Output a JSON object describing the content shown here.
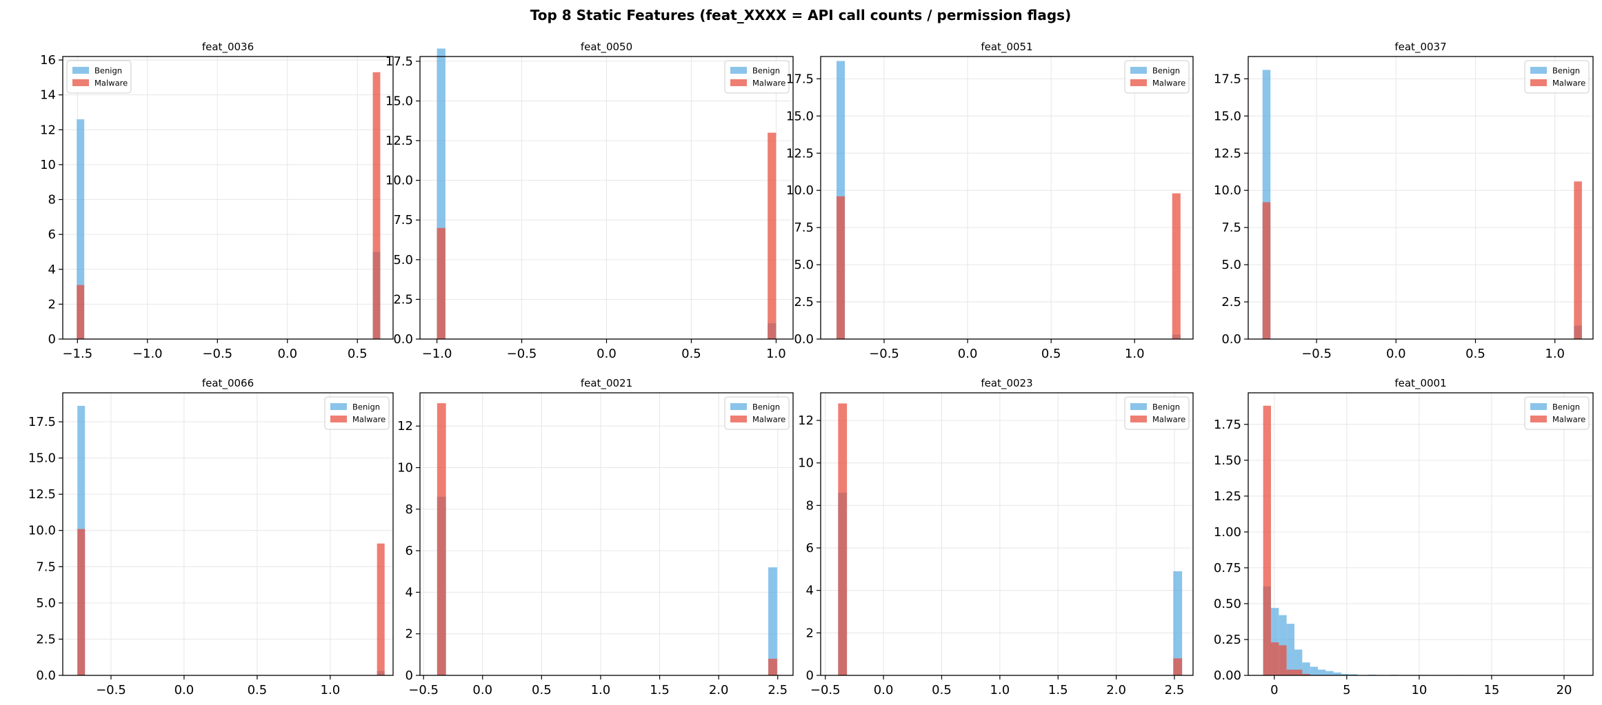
{
  "chart_data": {
    "suptitle": "Top 8 Static Features (feat_XXXX = API call counts / permission flags)",
    "legend": [
      "Benign",
      "Malware"
    ],
    "colors": {
      "benign": "#5dade2",
      "malware": "#e74c3c",
      "overlap": "#a35b7e"
    },
    "panels": [
      {
        "type": "histogram",
        "title": "feat_0036",
        "legend_loc": "upper left",
        "xlim": [
          -1.605,
          0.755
        ],
        "ylim": [
          0,
          16.2
        ],
        "xticks": [
          -1.5,
          -1.0,
          -0.5,
          0.0,
          0.5
        ],
        "xticklabels": [
          "−1.5",
          "−1.0",
          "−0.5",
          "0.0",
          "0.5"
        ],
        "yticks": [
          0,
          2,
          4,
          6,
          8,
          10,
          12,
          14,
          16
        ],
        "yticklabels": [
          "0",
          "2",
          "4",
          "6",
          "8",
          "10",
          "12",
          "14",
          "16"
        ],
        "bin_width": 0.0535,
        "benign": [
          [
            -1.505,
            12.6
          ],
          [
            0.61,
            5.0
          ]
        ],
        "malware": [
          [
            -1.505,
            3.1
          ],
          [
            0.61,
            15.3
          ]
        ]
      },
      {
        "type": "histogram",
        "title": "feat_0050",
        "legend_loc": "upper right",
        "xlim": [
          -1.1,
          1.1
        ],
        "ylim": [
          0,
          17.8
        ],
        "xticks": [
          -1.0,
          -0.5,
          0.0,
          0.5,
          1.0
        ],
        "xticklabels": [
          "−1.0",
          "−0.5",
          "0.0",
          "0.5",
          "1.0"
        ],
        "yticks": [
          0,
          2.5,
          5,
          7.5,
          10,
          12.5,
          15,
          17.5
        ],
        "yticklabels": [
          "0.0",
          "2.5",
          "5.0",
          "7.5",
          "10.0",
          "12.5",
          "15.0",
          "17.5"
        ],
        "bin_width": 0.05,
        "benign": [
          [
            -1.0,
            18.3
          ],
          [
            0.95,
            1.0
          ]
        ],
        "malware": [
          [
            -1.0,
            7.0
          ],
          [
            0.95,
            13.0
          ]
        ]
      },
      {
        "type": "histogram",
        "title": "feat_0051",
        "legend_loc": "upper right",
        "xlim": [
          -0.88,
          1.35
        ],
        "ylim": [
          0,
          19.0
        ],
        "xticks": [
          -0.5,
          0.0,
          0.5,
          1.0
        ],
        "xticklabels": [
          "−0.5",
          "0.0",
          "0.5",
          "1.0"
        ],
        "yticks": [
          0,
          2.5,
          5,
          7.5,
          10,
          12.5,
          15,
          17.5
        ],
        "yticklabels": [
          "0.0",
          "2.5",
          "5.0",
          "7.5",
          "10.0",
          "12.5",
          "15.0",
          "17.5"
        ],
        "bin_width": 0.05,
        "benign": [
          [
            -0.785,
            18.7
          ],
          [
            1.225,
            0.3
          ]
        ],
        "malware": [
          [
            -0.785,
            9.6
          ],
          [
            1.225,
            9.8
          ]
        ]
      },
      {
        "type": "histogram",
        "title": "feat_0037",
        "legend_loc": "upper right",
        "xlim": [
          -0.93,
          1.24
        ],
        "ylim": [
          0,
          19.0
        ],
        "xticks": [
          -0.5,
          0.0,
          0.5,
          1.0
        ],
        "xticklabels": [
          "−0.5",
          "0.0",
          "0.5",
          "1.0"
        ],
        "yticks": [
          0,
          2.5,
          5,
          7.5,
          10,
          12.5,
          15,
          17.5
        ],
        "yticklabels": [
          "0.0",
          "2.5",
          "5.0",
          "7.5",
          "10.0",
          "12.5",
          "15.0",
          "17.5"
        ],
        "bin_width": 0.05,
        "benign": [
          [
            -0.84,
            18.1
          ],
          [
            1.12,
            0.9
          ]
        ],
        "malware": [
          [
            -0.84,
            9.2
          ],
          [
            1.12,
            10.6
          ]
        ]
      },
      {
        "type": "histogram",
        "title": "feat_0066",
        "legend_loc": "upper right",
        "xlim": [
          -0.83,
          1.43
        ],
        "ylim": [
          0,
          19.5
        ],
        "xticks": [
          -0.5,
          0.0,
          0.5,
          1.0
        ],
        "xticklabels": [
          "−0.5",
          "0.0",
          "0.5",
          "1.0"
        ],
        "yticks": [
          0,
          2.5,
          5,
          7.5,
          10,
          12.5,
          15,
          17.5
        ],
        "yticklabels": [
          "0.0",
          "2.5",
          "5.0",
          "7.5",
          "10.0",
          "12.5",
          "15.0",
          "17.5"
        ],
        "bin_width": 0.052,
        "benign": [
          [
            -0.73,
            18.6
          ],
          [
            1.32,
            0.3
          ]
        ],
        "malware": [
          [
            -0.73,
            10.1
          ],
          [
            1.32,
            9.1
          ]
        ]
      },
      {
        "type": "histogram",
        "title": "feat_0021",
        "legend_loc": "upper right",
        "xlim": [
          -0.53,
          2.63
        ],
        "ylim": [
          0,
          13.6
        ],
        "xticks": [
          -0.5,
          0.0,
          0.5,
          1.0,
          1.5,
          2.0,
          2.5
        ],
        "xticklabels": [
          "−0.5",
          "0.0",
          "0.5",
          "1.0",
          "1.5",
          "2.0",
          "2.5"
        ],
        "yticks": [
          0,
          2,
          4,
          6,
          8,
          10,
          12
        ],
        "yticklabels": [
          "0",
          "2",
          "4",
          "6",
          "8",
          "10",
          "12"
        ],
        "bin_width": 0.075,
        "benign": [
          [
            -0.385,
            8.6
          ],
          [
            2.42,
            5.2
          ]
        ],
        "malware": [
          [
            -0.385,
            13.1
          ],
          [
            2.42,
            0.8
          ]
        ]
      },
      {
        "type": "histogram",
        "title": "feat_0023",
        "legend_loc": "upper right",
        "xlim": [
          -0.54,
          2.66
        ],
        "ylim": [
          0,
          13.3
        ],
        "xticks": [
          -0.5,
          0.0,
          0.5,
          1.0,
          1.5,
          2.0,
          2.5
        ],
        "xticklabels": [
          "−0.5",
          "0.0",
          "0.5",
          "1.0",
          "1.5",
          "2.0",
          "2.5"
        ],
        "yticks": [
          0,
          2,
          4,
          6,
          8,
          10,
          12
        ],
        "yticklabels": [
          "0",
          "2",
          "4",
          "6",
          "8",
          "10",
          "12"
        ],
        "bin_width": 0.076,
        "benign": [
          [
            -0.39,
            8.6
          ],
          [
            2.49,
            4.9
          ]
        ],
        "malware": [
          [
            -0.39,
            12.8
          ],
          [
            2.49,
            0.8
          ]
        ]
      },
      {
        "type": "histogram",
        "title": "feat_0001",
        "legend_loc": "upper right",
        "xlim": [
          -1.8,
          22.0
        ],
        "ylim": [
          0,
          1.97
        ],
        "xticks": [
          0,
          5,
          10,
          15,
          20
        ],
        "xticklabels": [
          "0",
          "5",
          "10",
          "15",
          "20"
        ],
        "yticks": [
          0,
          0.25,
          0.5,
          0.75,
          1.0,
          1.25,
          1.5,
          1.75
        ],
        "yticklabels": [
          "0.00",
          "0.25",
          "0.50",
          "0.75",
          "1.00",
          "1.25",
          "1.50",
          "1.75"
        ],
        "bin_width": 0.54,
        "benign": [
          [
            -0.77,
            0.62
          ],
          [
            -0.23,
            0.47
          ],
          [
            0.31,
            0.42
          ],
          [
            0.85,
            0.36
          ],
          [
            1.39,
            0.18
          ],
          [
            1.93,
            0.09
          ],
          [
            2.47,
            0.06
          ],
          [
            3.01,
            0.04
          ],
          [
            3.55,
            0.03
          ],
          [
            4.09,
            0.02
          ],
          [
            4.63,
            0.01
          ],
          [
            5.2,
            0.008
          ],
          [
            6.5,
            0.005
          ],
          [
            8.0,
            0.004
          ],
          [
            10.0,
            0.003
          ],
          [
            12.5,
            0.003
          ],
          [
            15.0,
            0.002
          ],
          [
            17.5,
            0.002
          ],
          [
            20.0,
            0.002
          ]
        ],
        "malware": [
          [
            -0.77,
            1.88
          ],
          [
            -0.23,
            0.23
          ],
          [
            0.31,
            0.21
          ],
          [
            0.85,
            0.04
          ],
          [
            1.39,
            0.04
          ],
          [
            1.93,
            0.01
          ]
        ]
      }
    ]
  }
}
